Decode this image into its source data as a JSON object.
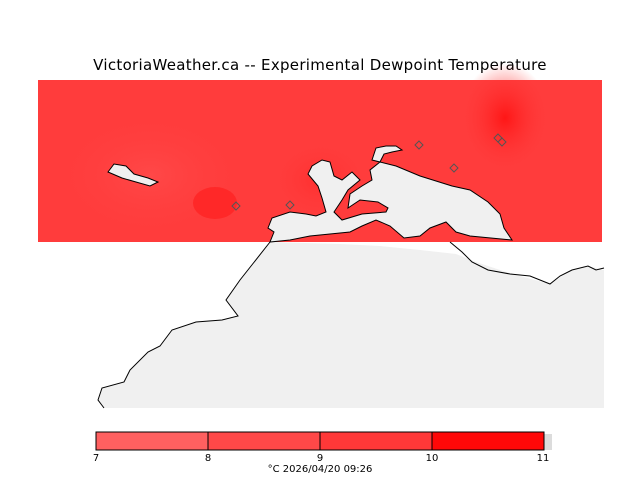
{
  "title": "VictoriaWeather.ca -- Experimental Dewpoint Temperature",
  "legend": {
    "ticks": [
      "7",
      "8",
      "9",
      "10",
      "11"
    ],
    "colors": [
      "#ff6060",
      "#ff4848",
      "#ff3838",
      "#ff2424",
      "#ff0808"
    ]
  },
  "caption": "°C  2026/04/20 09:26",
  "map": {
    "land_color": "#f0f0f0",
    "field_color": "#ff3c3c",
    "station_marker": "diamond-marker"
  }
}
